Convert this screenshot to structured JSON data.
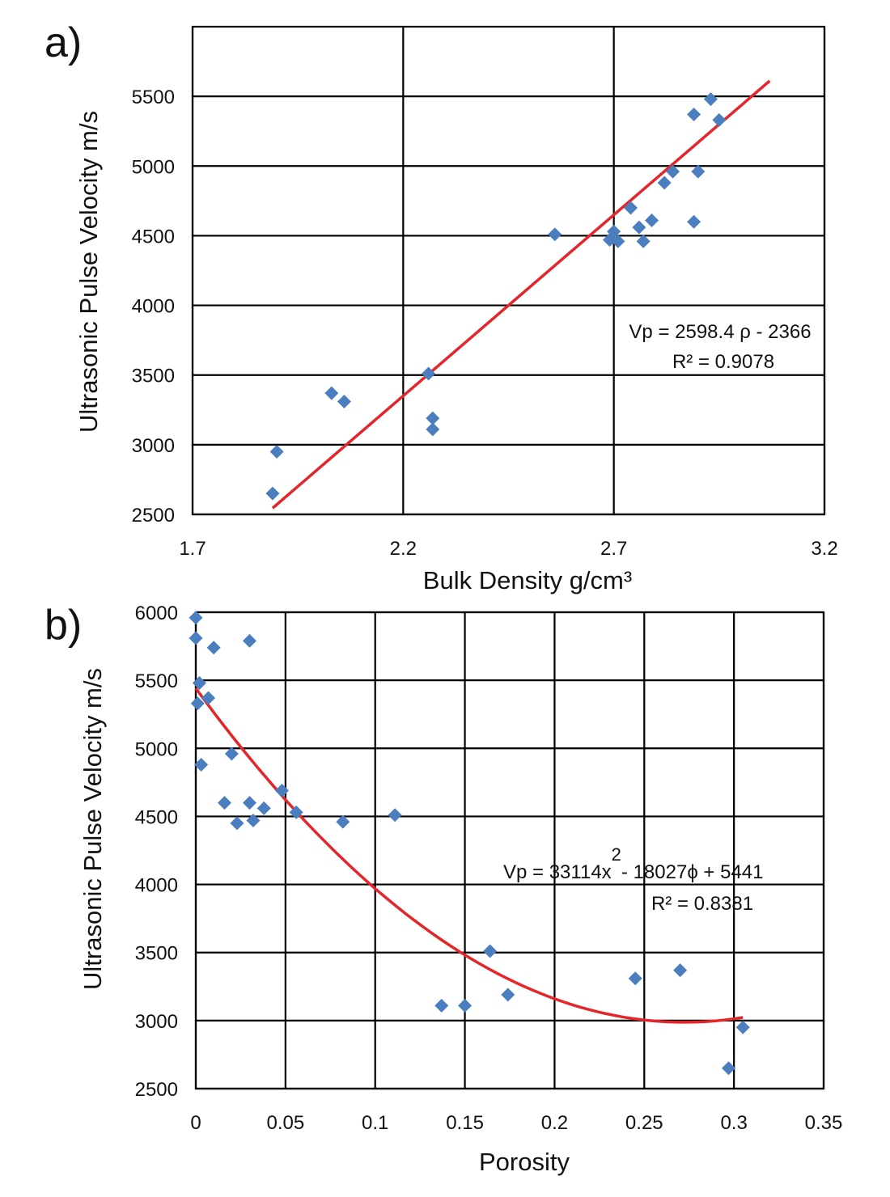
{
  "chart_data": [
    {
      "panel": "a)",
      "type": "scatter",
      "xlabel": "Bulk Density g/cm³",
      "ylabel": "Ultrasonic Pulse Velocity m/s",
      "xlim": [
        1.7,
        3.2
      ],
      "ylim": [
        2500,
        6000
      ],
      "xticks": [
        1.7,
        2.2,
        2.7,
        3.2
      ],
      "xtick_labels": [
        "1.7",
        "2.2",
        "2.7",
        "3.2"
      ],
      "yticks": [
        2500,
        3000,
        3500,
        4000,
        4500,
        5000,
        5500
      ],
      "ytick_labels": [
        "2500",
        "3000",
        "3500",
        "4000",
        "4500",
        "5000",
        "5500"
      ],
      "grid": true,
      "points": [
        {
          "x": 1.89,
          "y": 2650
        },
        {
          "x": 1.9,
          "y": 2950
        },
        {
          "x": 2.03,
          "y": 3370
        },
        {
          "x": 2.06,
          "y": 3310
        },
        {
          "x": 2.26,
          "y": 3510
        },
        {
          "x": 2.27,
          "y": 3190
        },
        {
          "x": 2.27,
          "y": 3110
        },
        {
          "x": 2.56,
          "y": 4510
        },
        {
          "x": 2.69,
          "y": 4470
        },
        {
          "x": 2.7,
          "y": 4530
        },
        {
          "x": 2.71,
          "y": 4460
        },
        {
          "x": 2.74,
          "y": 4700
        },
        {
          "x": 2.76,
          "y": 4560
        },
        {
          "x": 2.77,
          "y": 4460
        },
        {
          "x": 2.79,
          "y": 4610
        },
        {
          "x": 2.82,
          "y": 4880
        },
        {
          "x": 2.84,
          "y": 4960
        },
        {
          "x": 2.89,
          "y": 4600
        },
        {
          "x": 2.9,
          "y": 4960
        },
        {
          "x": 2.89,
          "y": 5370
        },
        {
          "x": 2.93,
          "y": 5480
        },
        {
          "x": 2.95,
          "y": 5330
        }
      ],
      "trendline": {
        "type": "linear",
        "slope": 2598.4,
        "intercept": -2366,
        "x_range": [
          1.89,
          3.07
        ]
      },
      "equation": "Vp = 2598.4 ρ  -  2366",
      "r_squared": "R² = 0.9078"
    },
    {
      "panel": "b)",
      "type": "scatter",
      "xlabel": "Porosity",
      "ylabel": "Ultrasonic Pulse Velocity m/s",
      "xlim": [
        0,
        0.35
      ],
      "ylim": [
        2500,
        6000
      ],
      "xticks": [
        0,
        0.05,
        0.1,
        0.15,
        0.2,
        0.25,
        0.3,
        0.35
      ],
      "xtick_labels": [
        "0",
        "0.05",
        "0.1",
        "0.15",
        "0.2",
        "0.25",
        "0.3",
        "0.35"
      ],
      "yticks": [
        2500,
        3000,
        3500,
        4000,
        4500,
        5000,
        5500,
        6000
      ],
      "ytick_labels": [
        "2500",
        "3000",
        "3500",
        "4000",
        "4500",
        "5000",
        "5500",
        "6000"
      ],
      "grid": true,
      "points": [
        {
          "x": 0.0,
          "y": 5960
        },
        {
          "x": 0.0,
          "y": 5810
        },
        {
          "x": 0.01,
          "y": 5740
        },
        {
          "x": 0.03,
          "y": 5790
        },
        {
          "x": 0.002,
          "y": 5480
        },
        {
          "x": 0.007,
          "y": 5370
        },
        {
          "x": 0.001,
          "y": 5330
        },
        {
          "x": 0.003,
          "y": 4880
        },
        {
          "x": 0.02,
          "y": 4960
        },
        {
          "x": 0.016,
          "y": 4600
        },
        {
          "x": 0.023,
          "y": 4450
        },
        {
          "x": 0.03,
          "y": 4600
        },
        {
          "x": 0.032,
          "y": 4470
        },
        {
          "x": 0.038,
          "y": 4560
        },
        {
          "x": 0.048,
          "y": 4690
        },
        {
          "x": 0.056,
          "y": 4530
        },
        {
          "x": 0.082,
          "y": 4460
        },
        {
          "x": 0.111,
          "y": 4510
        },
        {
          "x": 0.137,
          "y": 3110
        },
        {
          "x": 0.15,
          "y": 3110
        },
        {
          "x": 0.164,
          "y": 3510
        },
        {
          "x": 0.174,
          "y": 3190
        },
        {
          "x": 0.245,
          "y": 3310
        },
        {
          "x": 0.27,
          "y": 3370
        },
        {
          "x": 0.297,
          "y": 2650
        },
        {
          "x": 0.305,
          "y": 2950
        }
      ],
      "trendline": {
        "type": "polynomial",
        "a": 33114,
        "b": -18027,
        "c": 5441,
        "x_range": [
          0,
          0.305
        ]
      },
      "equation_parts": [
        "Vp = 33114x",
        "2",
        "- 18027ϕ  + 5441"
      ],
      "r_squared": "R² = 0.8381"
    }
  ]
}
